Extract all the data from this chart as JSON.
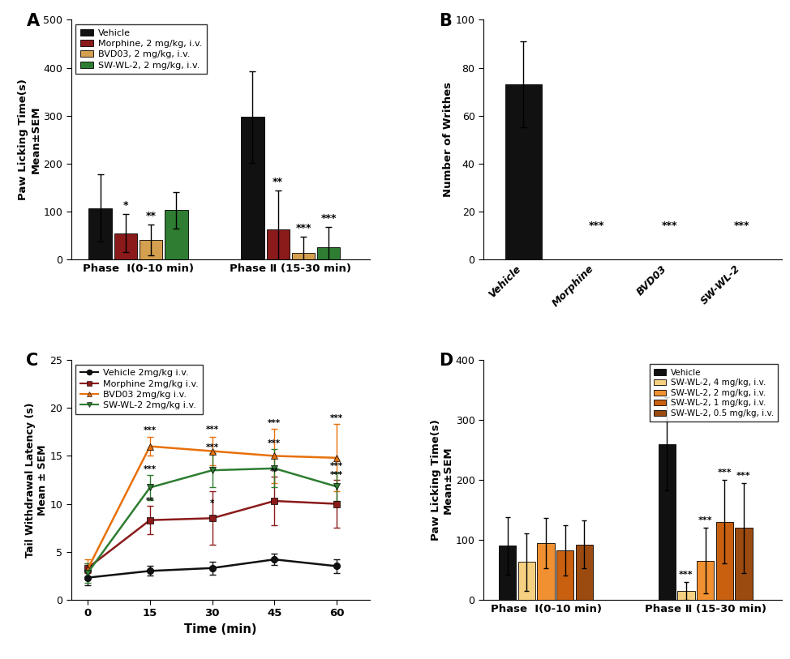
{
  "panel_A": {
    "ylabel": "Paw Licking Time(s)\nMean±SEM",
    "ylim": [
      0,
      500
    ],
    "yticks": [
      0,
      100,
      200,
      300,
      400,
      500
    ],
    "groups": [
      "Phase  I(0-10 min)",
      "Phase Ⅱ (15-30 min)"
    ],
    "categories": [
      "Vehicle",
      "Morphine, 2 mg/kg, i.v.",
      "BVD03, 2 mg/kg, i.v.",
      "SW-WL-2, 2 mg/kg, i.v."
    ],
    "colors": [
      "#111111",
      "#8B1A1A",
      "#D4A050",
      "#2E7D32"
    ],
    "values": [
      [
        107,
        55,
        40,
        103
      ],
      [
        297,
        63,
        13,
        25
      ]
    ],
    "errors": [
      [
        70,
        40,
        32,
        38
      ],
      [
        95,
        80,
        35,
        42
      ]
    ],
    "significance": [
      [
        "",
        "*",
        "**",
        ""
      ],
      [
        "",
        "**",
        "***",
        "***"
      ]
    ]
  },
  "panel_B": {
    "ylabel": "Number of Writhes",
    "ylim": [
      0,
      100
    ],
    "yticks": [
      0,
      20,
      40,
      60,
      80,
      100
    ],
    "categories": [
      "Vehicle",
      "Morphine",
      "BVD03",
      "SW-WL-2"
    ],
    "color": "#111111",
    "values": [
      73,
      0,
      0,
      0
    ],
    "errors": [
      18,
      0,
      0,
      0
    ],
    "significance": [
      "",
      "***",
      "***",
      "***"
    ]
  },
  "panel_C": {
    "ylabel": "Tail Withdrawal Latency (s)\nMean ± SEM",
    "xlabel": "Time (min)",
    "ylim": [
      0,
      25
    ],
    "yticks": [
      0,
      5,
      10,
      15,
      20,
      25
    ],
    "xticks": [
      0,
      15,
      30,
      45,
      60
    ],
    "series": [
      "Vehicle 2mg/kg i.v.",
      "Morphine 2mg/kg i.v.",
      "BVD03 2mg/kg i.v.",
      "SW-WL-2 2mg/kg i.v."
    ],
    "colors": [
      "#111111",
      "#8B1A1A",
      "#E8700A",
      "#2E7D32"
    ],
    "markers": [
      "o",
      "s",
      "^",
      "v"
    ],
    "values": [
      [
        2.3,
        3.0,
        3.3,
        4.2,
        3.5
      ],
      [
        3.3,
        8.3,
        8.5,
        10.3,
        10.0
      ],
      [
        3.2,
        16.0,
        15.5,
        15.0,
        14.8
      ],
      [
        2.8,
        11.7,
        13.5,
        13.7,
        11.8
      ]
    ],
    "errors": [
      [
        0.8,
        0.5,
        0.7,
        0.6,
        0.7
      ],
      [
        0.5,
        1.5,
        2.8,
        2.5,
        2.5
      ],
      [
        1.0,
        1.0,
        1.5,
        2.8,
        3.5
      ],
      [
        1.0,
        1.3,
        1.8,
        2.0,
        1.5
      ]
    ],
    "sig_positions": [
      [
        1,
        1,
        "**",
        0,
        9.9
      ],
      [
        1,
        2,
        "*",
        0,
        9.6
      ],
      [
        1,
        3,
        "**",
        0,
        12.9
      ],
      [
        1,
        4,
        "***",
        0,
        12.6
      ],
      [
        2,
        1,
        "***",
        0,
        17.2
      ],
      [
        2,
        2,
        "***",
        0,
        17.3
      ],
      [
        2,
        3,
        "***",
        0,
        18.0
      ],
      [
        2,
        4,
        "***",
        0,
        18.5
      ],
      [
        3,
        1,
        "***",
        0,
        13.2
      ],
      [
        3,
        2,
        "***",
        0,
        15.5
      ],
      [
        3,
        3,
        "***",
        0,
        15.9
      ],
      [
        3,
        4,
        "***",
        0,
        13.5
      ]
    ]
  },
  "panel_D": {
    "ylabel": "Paw Licking Time(s)\nMean±SEM",
    "ylim": [
      0,
      400
    ],
    "yticks": [
      0,
      100,
      200,
      300,
      400
    ],
    "groups": [
      "Phase  I(0-10 min)",
      "Phase Ⅱ (15-30 min)"
    ],
    "categories": [
      "Vehicle",
      "SW-WL-2, 4 mg/kg, i.v.",
      "SW-WL-2, 2 mg/kg, i.v.",
      "SW-WL-2, 1 mg/kg, i.v.",
      "SW-WL-2, 0.5 mg/kg, i.v."
    ],
    "colors": [
      "#111111",
      "#F5D080",
      "#F09030",
      "#C86010",
      "#9B4A10"
    ],
    "values": [
      [
        90,
        63,
        95,
        82,
        92
      ],
      [
        260,
        15,
        65,
        130,
        120
      ]
    ],
    "errors": [
      [
        48,
        48,
        42,
        42,
        40
      ],
      [
        78,
        15,
        55,
        70,
        75
      ]
    ],
    "significance": [
      [
        "",
        "",
        "",
        "",
        ""
      ],
      [
        "",
        "***",
        "***",
        "***",
        "***"
      ]
    ]
  }
}
